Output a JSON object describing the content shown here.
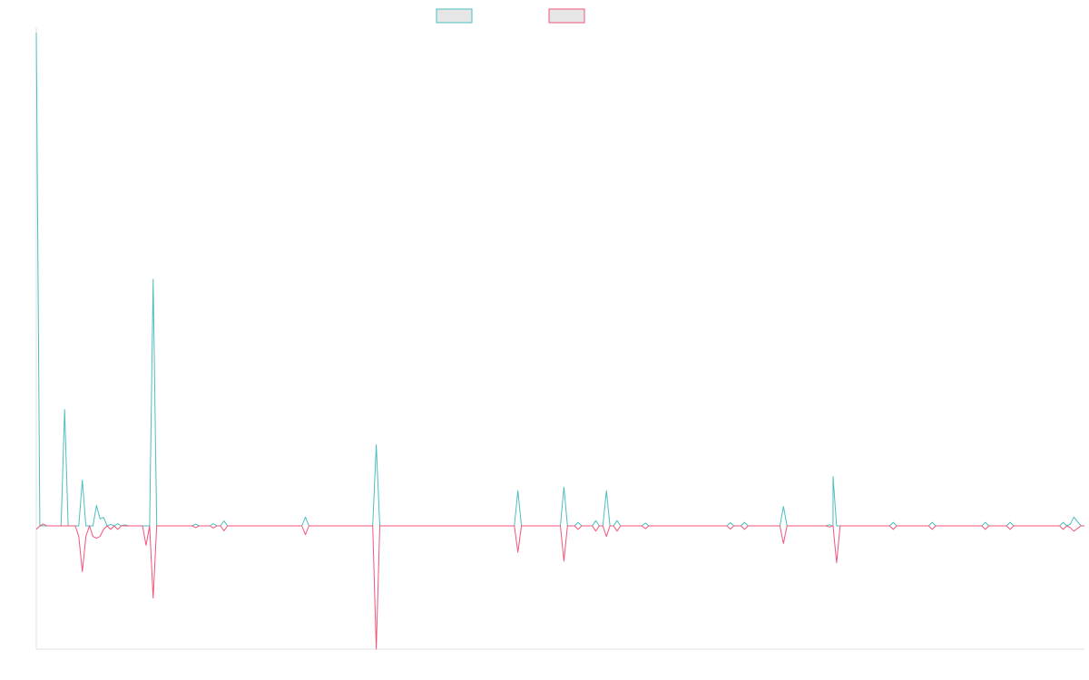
{
  "chart_data": {
    "type": "line",
    "title": "",
    "xlabel": "",
    "ylabel": "",
    "legend": {
      "placement": "top-center",
      "entries": [
        {
          "label": "",
          "color": "#4bbfbf"
        },
        {
          "label": "",
          "color": "#f0557a"
        }
      ]
    },
    "grid": false,
    "xlim": [
      0,
      296
    ],
    "ylim": [
      -35,
      140
    ],
    "series": [
      {
        "color": "#4bbfbf",
        "points": [
          [
            0,
            140
          ],
          [
            1,
            0
          ],
          [
            7,
            0
          ],
          [
            8,
            33
          ],
          [
            9,
            0
          ],
          [
            12,
            0
          ],
          [
            13,
            13
          ],
          [
            14,
            0
          ],
          [
            16,
            0
          ],
          [
            17,
            5.8
          ],
          [
            18,
            2
          ],
          [
            19,
            2.4
          ],
          [
            20,
            0
          ],
          [
            21,
            0.4
          ],
          [
            22,
            0
          ],
          [
            23,
            0.6
          ],
          [
            24,
            0
          ],
          [
            25,
            0.3
          ],
          [
            26,
            0
          ],
          [
            32,
            0
          ],
          [
            33,
            70
          ],
          [
            34,
            0
          ],
          [
            44,
            0
          ],
          [
            45,
            0.5
          ],
          [
            46,
            0
          ],
          [
            49,
            0
          ],
          [
            50,
            0.6
          ],
          [
            51,
            0
          ],
          [
            52,
            0
          ],
          [
            53,
            1.4
          ],
          [
            54,
            0
          ],
          [
            75,
            0
          ],
          [
            76,
            2.5
          ],
          [
            77,
            0
          ],
          [
            95,
            0
          ],
          [
            96,
            23
          ],
          [
            97,
            0
          ],
          [
            135,
            0
          ],
          [
            136,
            10
          ],
          [
            137,
            0
          ],
          [
            148,
            0
          ],
          [
            149,
            11
          ],
          [
            150,
            0
          ],
          [
            152,
            0
          ],
          [
            153,
            1
          ],
          [
            154,
            0
          ],
          [
            157,
            0
          ],
          [
            158,
            1.5
          ],
          [
            159,
            0
          ],
          [
            160,
            0
          ],
          [
            161,
            10
          ],
          [
            162,
            0
          ],
          [
            163,
            0
          ],
          [
            164,
            1.5
          ],
          [
            165,
            0
          ],
          [
            171,
            0
          ],
          [
            172,
            0.8
          ],
          [
            173,
            0
          ],
          [
            195,
            0
          ],
          [
            196,
            0.9
          ],
          [
            197,
            0
          ],
          [
            199,
            0
          ],
          [
            200,
            1
          ],
          [
            201,
            0
          ],
          [
            210,
            0
          ],
          [
            211,
            5.5
          ],
          [
            212,
            0
          ],
          [
            223,
            0
          ],
          [
            224,
            0.3
          ],
          [
            225,
            0
          ],
          [
            224.5,
            0
          ],
          [
            225,
            14
          ],
          [
            226,
            0
          ],
          [
            241,
            0
          ],
          [
            242,
            1
          ],
          [
            243,
            0
          ],
          [
            252,
            0
          ],
          [
            253,
            1
          ],
          [
            254,
            0
          ],
          [
            267,
            0
          ],
          [
            268,
            1
          ],
          [
            269,
            0
          ],
          [
            274,
            0
          ],
          [
            275,
            1
          ],
          [
            276,
            0
          ],
          [
            289,
            0
          ],
          [
            290,
            1
          ],
          [
            291,
            0
          ],
          [
            292,
            0.5
          ],
          [
            293,
            2.5
          ],
          [
            295,
            0
          ],
          [
            296,
            0
          ]
        ]
      },
      {
        "color": "#f0557a",
        "points": [
          [
            0,
            -1
          ],
          [
            1,
            0
          ],
          [
            2,
            0.5
          ],
          [
            3,
            0
          ],
          [
            11,
            0
          ],
          [
            12,
            -3
          ],
          [
            13,
            -13
          ],
          [
            14,
            -3
          ],
          [
            15,
            0
          ],
          [
            16,
            -3
          ],
          [
            17,
            -3.5
          ],
          [
            18,
            -3
          ],
          [
            19,
            -1
          ],
          [
            20,
            0
          ],
          [
            21,
            -1
          ],
          [
            22,
            0
          ],
          [
            23,
            -1
          ],
          [
            24,
            0
          ],
          [
            25,
            0
          ],
          [
            30,
            0
          ],
          [
            31,
            -5.5
          ],
          [
            32,
            0
          ],
          [
            33,
            -20.5
          ],
          [
            34,
            0
          ],
          [
            44,
            0
          ],
          [
            45,
            -0.5
          ],
          [
            46,
            0
          ],
          [
            49,
            0
          ],
          [
            50,
            -0.6
          ],
          [
            51,
            0
          ],
          [
            52,
            0
          ],
          [
            53,
            -1.4
          ],
          [
            54,
            0
          ],
          [
            75,
            0
          ],
          [
            76,
            -2.5
          ],
          [
            77,
            0
          ],
          [
            95,
            0
          ],
          [
            96,
            -35
          ],
          [
            97,
            0
          ],
          [
            135,
            0
          ],
          [
            136,
            -7.5
          ],
          [
            137,
            0
          ],
          [
            148,
            0
          ],
          [
            149,
            -10
          ],
          [
            150,
            0
          ],
          [
            152,
            0
          ],
          [
            153,
            -1
          ],
          [
            154,
            0
          ],
          [
            157,
            0
          ],
          [
            158,
            -1.5
          ],
          [
            159,
            0
          ],
          [
            160,
            0
          ],
          [
            161,
            -3
          ],
          [
            162,
            0
          ],
          [
            163,
            0
          ],
          [
            164,
            -1.5
          ],
          [
            165,
            0
          ],
          [
            171,
            0
          ],
          [
            172,
            -0.8
          ],
          [
            173,
            0
          ],
          [
            195,
            0
          ],
          [
            196,
            -0.9
          ],
          [
            197,
            0
          ],
          [
            199,
            0
          ],
          [
            200,
            -1
          ],
          [
            201,
            0
          ],
          [
            210,
            0
          ],
          [
            211,
            -5
          ],
          [
            212,
            0
          ],
          [
            223,
            0
          ],
          [
            224,
            -0.3
          ],
          [
            225,
            0
          ],
          [
            226,
            -10.5
          ],
          [
            227,
            0
          ],
          [
            241,
            0
          ],
          [
            242,
            -1
          ],
          [
            243,
            0
          ],
          [
            252,
            0
          ],
          [
            253,
            -1
          ],
          [
            254,
            0
          ],
          [
            267,
            0
          ],
          [
            268,
            -1
          ],
          [
            269,
            0
          ],
          [
            274,
            0
          ],
          [
            275,
            -1
          ],
          [
            276,
            0
          ],
          [
            289,
            0
          ],
          [
            290,
            -1
          ],
          [
            291,
            0
          ],
          [
            292,
            -0.5
          ],
          [
            293,
            -1.5
          ],
          [
            295,
            0
          ],
          [
            296,
            0
          ]
        ]
      }
    ]
  }
}
